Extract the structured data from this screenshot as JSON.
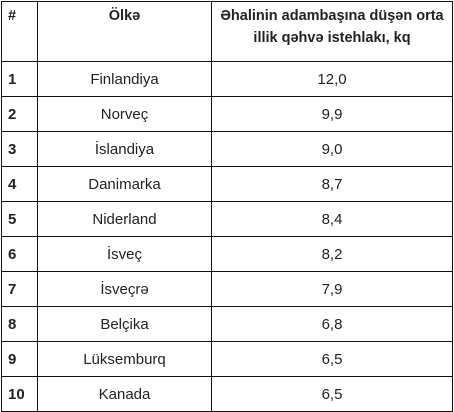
{
  "table": {
    "header": [
      "#",
      "Ölkə",
      "Əhalinin adambaşına düşən orta illik qəhvə istehlakı, kq"
    ],
    "rows": [
      [
        "1",
        "Finlandiya",
        "12,0"
      ],
      [
        "2",
        "Norveç",
        "9,9"
      ],
      [
        "3",
        "İslandiya",
        "9,0"
      ],
      [
        "4",
        "Danimarka",
        "8,7"
      ],
      [
        "5",
        "Niderland",
        "8,4"
      ],
      [
        "6",
        "İsveç",
        "8,2"
      ],
      [
        "7",
        "İsveçrə",
        "7,9"
      ],
      [
        "8",
        "Belçika",
        "6,8"
      ],
      [
        "9",
        "Lüksemburq",
        "6,5"
      ],
      [
        "10",
        "Kanada",
        "6,5"
      ]
    ]
  }
}
